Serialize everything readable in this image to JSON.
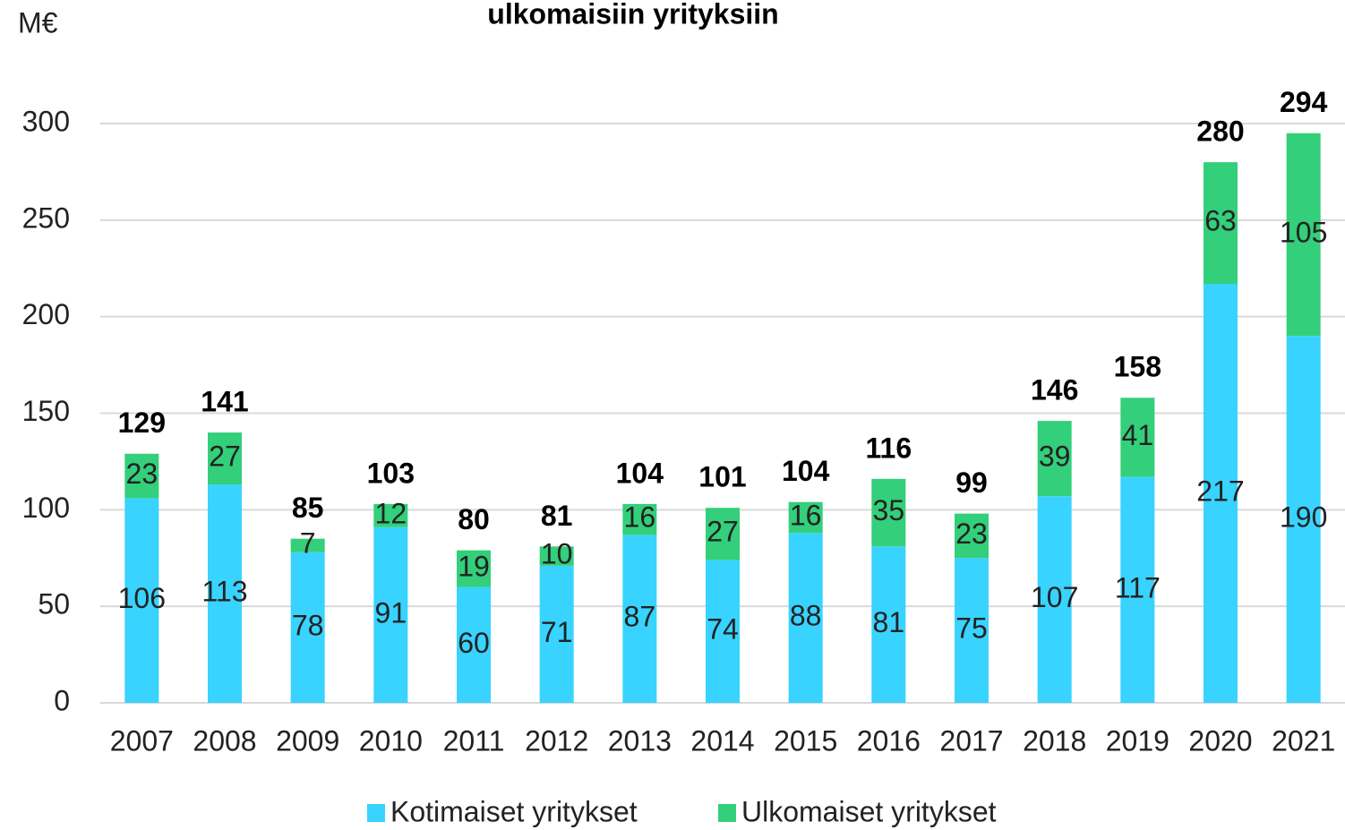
{
  "chart_data": {
    "type": "stacked_bar",
    "title": "ulkomaisiin yrityksiin",
    "y_label": "M€",
    "categories": [
      "2007",
      "2008",
      "2009",
      "2010",
      "2011",
      "2012",
      "2013",
      "2014",
      "2015",
      "2016",
      "2017",
      "2018",
      "2019",
      "2020",
      "2021"
    ],
    "series": [
      {
        "name": "Kotimaiset yritykset",
        "color": "#38d3ff",
        "values": [
          106,
          113,
          78,
          91,
          60,
          71,
          87,
          74,
          88,
          81,
          75,
          107,
          117,
          217,
          190
        ]
      },
      {
        "name": "Ulkomaiset yritykset",
        "color": "#33cf7a",
        "values": [
          23,
          27,
          7,
          12,
          19,
          10,
          16,
          27,
          16,
          35,
          23,
          39,
          41,
          63,
          105
        ]
      }
    ],
    "totals": [
      129,
      141,
      85,
      103,
      80,
      81,
      104,
      101,
      104,
      116,
      99,
      146,
      158,
      280,
      294
    ],
    "ylim": [
      0,
      300
    ],
    "yticks": [
      0,
      50,
      100,
      150,
      200,
      250,
      300
    ],
    "grid": true,
    "legend": "bottom"
  }
}
